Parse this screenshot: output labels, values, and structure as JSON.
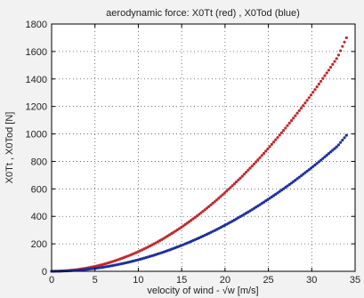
{
  "chart_data": {
    "type": "scatter",
    "title": "aerodynamic force:  X0Tt (red) ,  X0Tod (blue)",
    "xlabel": "velocity of wind - √w [m/s]",
    "ylabel": "X0Tt , X0Tod [N]",
    "xlim": [
      0,
      35
    ],
    "ylim": [
      0,
      1800
    ],
    "xticks": [
      0,
      5,
      10,
      15,
      20,
      25,
      30,
      35
    ],
    "yticks": [
      0,
      200,
      400,
      600,
      800,
      1000,
      1200,
      1400,
      1600,
      1800
    ],
    "grid": true,
    "series": [
      {
        "color": "#c0282d",
        "x": [
          0,
          1,
          2,
          3,
          4,
          5,
          6,
          7,
          8,
          9,
          10,
          11,
          12,
          13,
          14,
          15,
          16,
          17,
          18,
          19,
          20,
          21,
          22,
          23,
          24,
          25,
          26,
          27,
          28,
          29,
          30,
          31,
          32,
          33,
          34
        ],
        "y": [
          0,
          2,
          6,
          13,
          23,
          36,
          51,
          70,
          92,
          116,
          143,
          173,
          206,
          242,
          281,
          322,
          367,
          414,
          464,
          517,
          573,
          632,
          693,
          758,
          825,
          896,
          969,
          1045,
          1124,
          1205,
          1290,
          1378,
          1468,
          1561,
          1700
        ]
      },
      {
        "color": "#1f2f9e",
        "x": [
          0,
          1,
          2,
          3,
          4,
          5,
          6,
          7,
          8,
          9,
          10,
          11,
          12,
          13,
          14,
          15,
          16,
          17,
          18,
          19,
          20,
          21,
          22,
          23,
          24,
          25,
          26,
          27,
          28,
          29,
          30,
          31,
          32,
          33,
          34
        ],
        "y": [
          0,
          1,
          4,
          8,
          14,
          21,
          30,
          41,
          54,
          68,
          84,
          102,
          121,
          142,
          165,
          189,
          215,
          243,
          272,
          303,
          336,
          370,
          407,
          444,
          484,
          525,
          568,
          612,
          658,
          706,
          755,
          806,
          859,
          913,
          990
        ]
      }
    ]
  }
}
